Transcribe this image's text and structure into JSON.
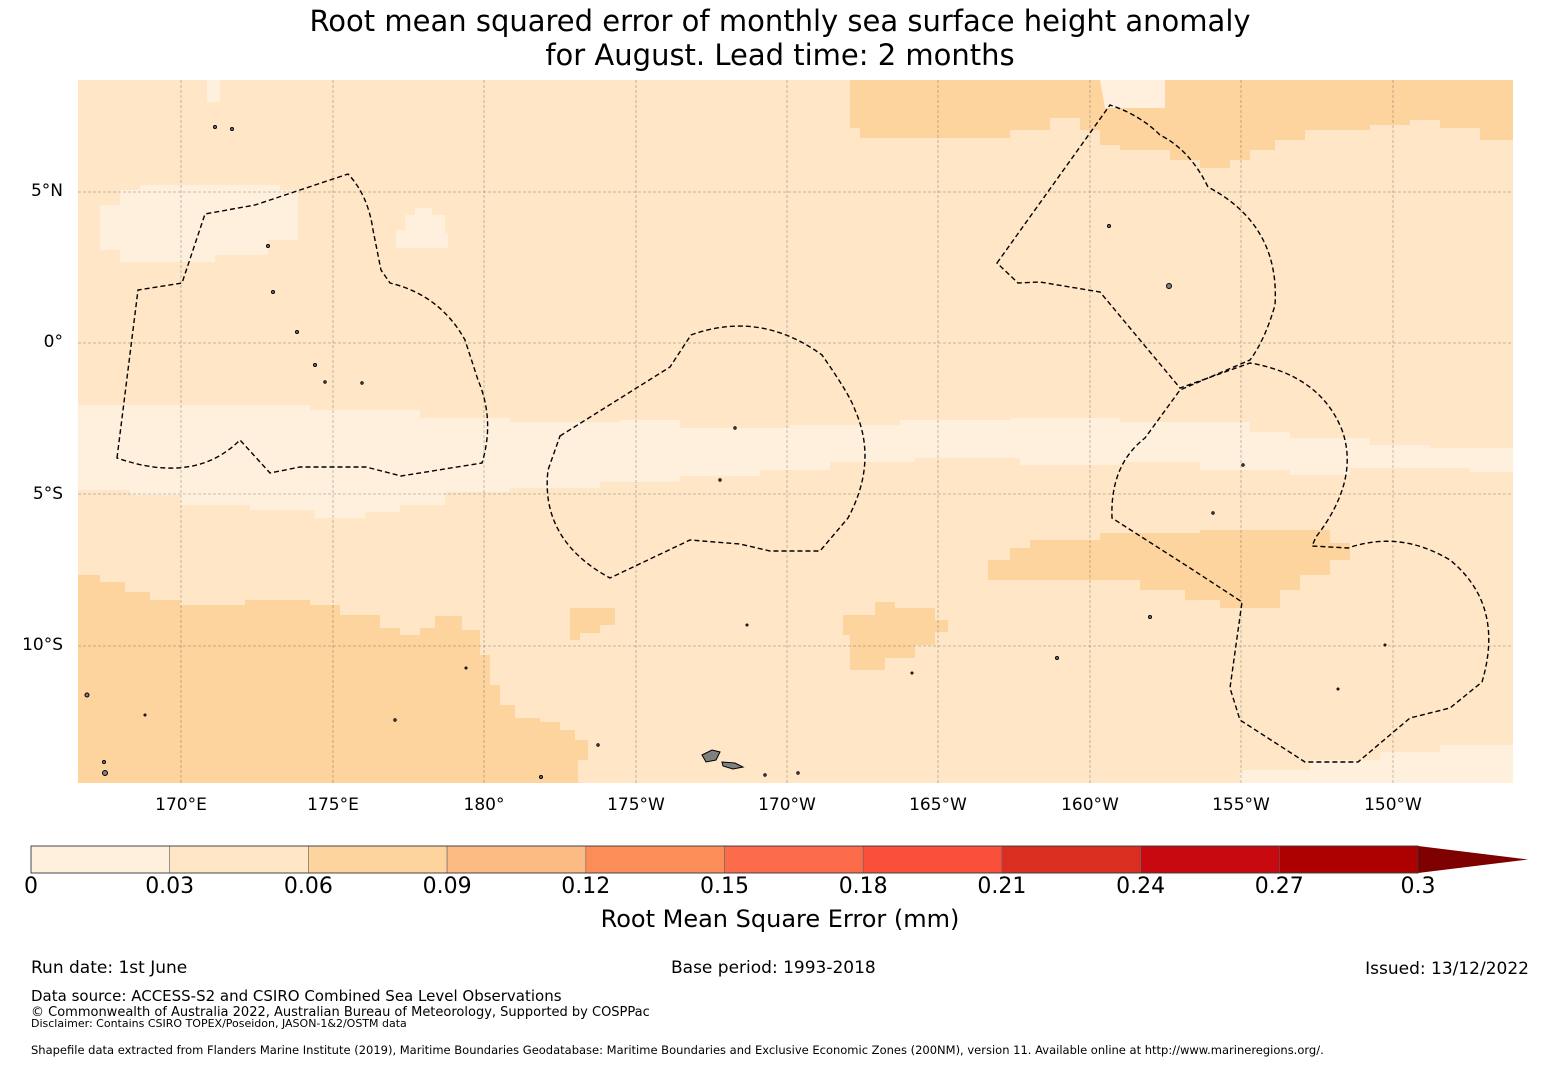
{
  "title": {
    "line1": "Root mean squared error of monthly sea surface height anomaly",
    "line2": "for August. Lead time: 2 months"
  },
  "map": {
    "lat_labels": [
      "5°N",
      "0°",
      "5°S",
      "10°S"
    ],
    "lat_values": [
      5,
      0,
      -5,
      -10
    ],
    "lon_labels": [
      "170°E",
      "175°E",
      "180°",
      "175°W",
      "170°W",
      "165°W",
      "160°W",
      "155°W",
      "150°W"
    ],
    "lon_values": [
      170,
      175,
      180,
      185,
      190,
      195,
      200,
      205,
      210
    ],
    "extent_lon": [
      166.6,
      214.0
    ],
    "extent_lat": [
      -14.4,
      8.7
    ],
    "field_colors": {
      "0-0.03": "#fff0de",
      "0.03-0.06": "#fee6c6",
      "0.06-0.09": "#fdd49e"
    },
    "land_color": "#808080",
    "eez_line_style": "dashed black"
  },
  "colorbar": {
    "ticks": [
      "0",
      "0.03",
      "0.06",
      "0.09",
      "0.12",
      "0.15",
      "0.18",
      "0.21",
      "0.24",
      "0.27",
      "0.3"
    ],
    "colors": [
      "#fff0de",
      "#fee6c6",
      "#fdd49e",
      "#fdbb84",
      "#fc8d59",
      "#fc6b4a",
      "#f94f3b",
      "#da2e20",
      "#c8090f",
      "#ad0000",
      "#7f0000"
    ],
    "label": "Root Mean Square Error (mm)",
    "extend": "max"
  },
  "footer": {
    "run_date": "Run date: 1st June",
    "base_period": "Base period: 1993-2018",
    "issued": "Issued: 13/12/2022",
    "data_source": "Data source: ACCESS-S2 and CSIRO Combined Sea Level Observations",
    "copyright": "© Commonwealth of Australia 2022, Australian Bureau of Meteorology, Supported by COSPPac",
    "disclaimer": "Disclaimer: Contains CSIRO TOPEX/Poseidon, JASON-1&2/OSTM data",
    "shapefile": "Shapefile data extracted from Flanders Marine Institute (2019), Maritime Boundaries Geodatabase: Maritime Boundaries and Exclusive Economic Zones (200NM), version 11. Available online at http://www.marineregions.org/."
  }
}
